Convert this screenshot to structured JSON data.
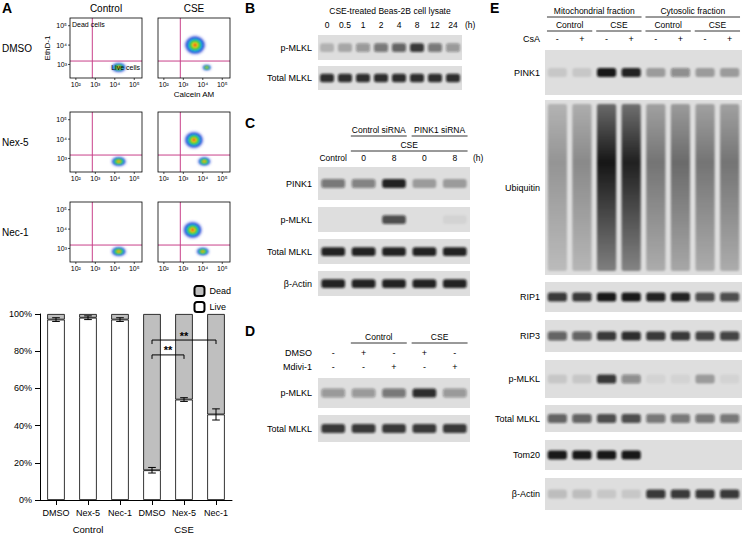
{
  "flow": {
    "letter": "A",
    "columns": [
      "Control",
      "CSE"
    ],
    "rows": [
      "DMSO",
      "Nex-5",
      "Nec-1"
    ],
    "x_label": "Calcein AM",
    "y_label": "EthD-1",
    "quadrant_labels": {
      "dead": "Dead cells",
      "live": "Live cells"
    },
    "log": true,
    "xlim": [
      50,
      250000
    ],
    "ylim": [
      200,
      250000
    ],
    "xticks": [
      {
        "value": 100,
        "label": "10²"
      },
      {
        "value": 1000,
        "label": "10³"
      },
      {
        "value": 10000,
        "label": "10⁴"
      },
      {
        "value": 100000,
        "label": "10⁵"
      }
    ],
    "yticks": [
      {
        "value": 1000,
        "label": "10³"
      },
      {
        "value": 10000,
        "label": "10⁴"
      },
      {
        "value": 100000,
        "label": "10⁵"
      }
    ],
    "gate": {
      "x": 700,
      "y": 1500
    },
    "plots": [
      [
        {
          "populations": [
            {
              "x": 16000,
              "y": 700,
              "x_spread": 0.35,
              "y_spread": 0.22
            }
          ]
        },
        {
          "populations": [
            {
              "x": 4000,
              "y": 10000,
              "x_spread": 0.5,
              "y_spread": 0.45
            },
            {
              "x": 16000,
              "y": 700,
              "x_spread": 0.2,
              "y_spread": 0.12
            }
          ]
        }
      ],
      [
        {
          "populations": [
            {
              "x": 16000,
              "y": 700,
              "x_spread": 0.35,
              "y_spread": 0.22
            }
          ]
        },
        {
          "populations": [
            {
              "x": 3500,
              "y": 9000,
              "x_spread": 0.45,
              "y_spread": 0.4
            },
            {
              "x": 12000,
              "y": 700,
              "x_spread": 0.3,
              "y_spread": 0.2
            }
          ]
        }
      ],
      [
        {
          "populations": [
            {
              "x": 16000,
              "y": 700,
              "x_spread": 0.35,
              "y_spread": 0.22
            }
          ]
        },
        {
          "populations": [
            {
              "x": 3000,
              "y": 9000,
              "x_spread": 0.45,
              "y_spread": 0.4
            },
            {
              "x": 10000,
              "y": 700,
              "x_spread": 0.3,
              "y_spread": 0.18
            }
          ]
        }
      ]
    ]
  },
  "chart_data": {
    "type": "bar",
    "stacked": true,
    "categories": [
      "DMSO",
      "Nex-5",
      "Nec-1",
      "DMSO",
      "Nex-5",
      "Nec-1"
    ],
    "group_labels": [
      "Control",
      "CSE"
    ],
    "series": [
      {
        "name": "Live",
        "color": "#ffffff",
        "values": [
          97,
          98,
          97,
          16,
          54,
          46
        ],
        "errors": [
          1,
          1,
          1,
          1.5,
          1,
          3
        ]
      },
      {
        "name": "Dead",
        "color": "#bfbfbf",
        "values": [
          3,
          2,
          3,
          84,
          46,
          54
        ]
      }
    ],
    "ylim": [
      0,
      100
    ],
    "yticks": [
      {
        "value": 0,
        "label": "0%"
      },
      {
        "value": 20,
        "label": "20%"
      },
      {
        "value": 40,
        "label": "40%"
      },
      {
        "value": 60,
        "label": "60%"
      },
      {
        "value": 80,
        "label": "80%"
      },
      {
        "value": 100,
        "label": "100%"
      }
    ],
    "grid": false,
    "legend": "top-right",
    "annotations": [
      {
        "text": "**",
        "from": 3,
        "to": 4,
        "y": 78
      },
      {
        "text": "**",
        "from": 3,
        "to": 5,
        "y": 86
      }
    ]
  },
  "blots": [
    {
      "letter": "B",
      "headers": [
        [
          {
            "text": "CSE-treated Beas-2B cell lysate",
            "lanes": [
              0,
              7
            ],
            "rule": false
          }
        ]
      ],
      "lane_labels": [
        "0",
        "0.5",
        "1",
        "2",
        "4",
        "8",
        "12",
        "24"
      ],
      "lane_unit": "(h)",
      "conditions": [],
      "rows": [
        {
          "label": "p-MLKL",
          "bands": [
            0.2,
            0.25,
            0.35,
            0.5,
            0.6,
            0.8,
            0.5,
            0.35
          ]
        },
        {
          "label": "Total MLKL",
          "bands": [
            0.85,
            0.85,
            0.85,
            0.85,
            0.85,
            0.85,
            0.85,
            0.85
          ]
        }
      ]
    },
    {
      "letter": "C",
      "headers": [
        [
          {
            "text": "Control siRNA",
            "lanes": [
              1,
              2
            ],
            "rule": true
          },
          {
            "text": "PINK1 siRNA",
            "lanes": [
              3,
              4
            ],
            "rule": true
          }
        ],
        [
          {
            "text": "CSE",
            "lanes": [
              1,
              4
            ],
            "rule": true
          }
        ]
      ],
      "lane_labels": [
        "Control",
        "0",
        "8",
        "0",
        "8"
      ],
      "lane_unit": "(h)",
      "conditions": [],
      "rows": [
        {
          "label": "PINK1",
          "bands": [
            0.5,
            0.45,
            0.9,
            0.3,
            0.3
          ]
        },
        {
          "label": "p-MLKL",
          "bands": [
            0,
            0,
            0.7,
            0,
            0.05
          ]
        },
        {
          "label": "Total MLKL",
          "bands": [
            0.9,
            0.9,
            0.9,
            0.9,
            0.9
          ]
        },
        {
          "label": "β-Actin",
          "bands": [
            0.9,
            0.9,
            0.9,
            0.9,
            0.9
          ]
        }
      ]
    },
    {
      "letter": "D",
      "headers": [
        [
          {
            "text": "Control",
            "lanes": [
              1,
              2
            ],
            "rule": true
          },
          {
            "text": "CSE",
            "lanes": [
              3,
              4
            ],
            "rule": true
          }
        ]
      ],
      "lane_labels": [],
      "conditions": [
        {
          "label": "DMSO",
          "values": [
            "-",
            "+",
            "-",
            "+",
            "-"
          ]
        },
        {
          "label": "Mdivi-1",
          "values": [
            "-",
            "-",
            "+",
            "-",
            "+"
          ]
        }
      ],
      "rows": [
        {
          "label": "p-MLKL",
          "bands": [
            0.35,
            0.35,
            0.5,
            0.85,
            0.35
          ]
        },
        {
          "label": "Total MLKL",
          "bands": [
            0.8,
            0.8,
            0.8,
            0.8,
            0.8
          ]
        }
      ]
    },
    {
      "letter": "E",
      "headers": [
        [
          {
            "text": "Mitochondrial fraction",
            "lanes": [
              0,
              3
            ],
            "rule": true
          },
          {
            "text": "Cytosolic fraction",
            "lanes": [
              4,
              7
            ],
            "rule": true
          }
        ],
        [
          {
            "text": "Control",
            "lanes": [
              0,
              1
            ],
            "rule": true
          },
          {
            "text": "CSE",
            "lanes": [
              2,
              3
            ],
            "rule": true
          },
          {
            "text": "Control",
            "lanes": [
              4,
              5
            ],
            "rule": true
          },
          {
            "text": "CSE",
            "lanes": [
              6,
              7
            ],
            "rule": true
          }
        ]
      ],
      "lane_labels": [],
      "conditions": [
        {
          "label": "CsA",
          "values": [
            "-",
            "+",
            "-",
            "+",
            "-",
            "+",
            "-",
            "+"
          ]
        }
      ],
      "rows": [
        {
          "label": "PINK1",
          "bands": [
            0.1,
            0.1,
            0.95,
            0.9,
            0.3,
            0.4,
            0.3,
            0.3
          ]
        },
        {
          "label": "Ubiquitin",
          "smear": [
            0.35,
            0.4,
            0.95,
            0.9,
            0.5,
            0.55,
            0.5,
            0.5
          ]
        },
        {
          "label": "RIP1",
          "bands": [
            0.8,
            0.8,
            0.95,
            0.95,
            0.9,
            0.9,
            0.7,
            0.7
          ]
        },
        {
          "label": "RIP3",
          "bands": [
            0.6,
            0.6,
            0.8,
            0.85,
            0.8,
            0.8,
            0.75,
            0.75
          ]
        },
        {
          "label": "p-MLKL",
          "bands": [
            0.1,
            0.1,
            0.8,
            0.4,
            0.05,
            0.05,
            0.3,
            0.05
          ]
        },
        {
          "label": "Total MLKL",
          "bands": [
            0.6,
            0.6,
            0.7,
            0.7,
            0.5,
            0.5,
            0.5,
            0.5
          ]
        },
        {
          "label": "Tom20",
          "bands": [
            0.95,
            0.95,
            0.95,
            0.95,
            0,
            0,
            0,
            0
          ]
        },
        {
          "label": "β-Actin",
          "bands": [
            0.15,
            0.15,
            0.1,
            0.1,
            0.8,
            0.8,
            0.8,
            0.8
          ]
        }
      ]
    }
  ]
}
